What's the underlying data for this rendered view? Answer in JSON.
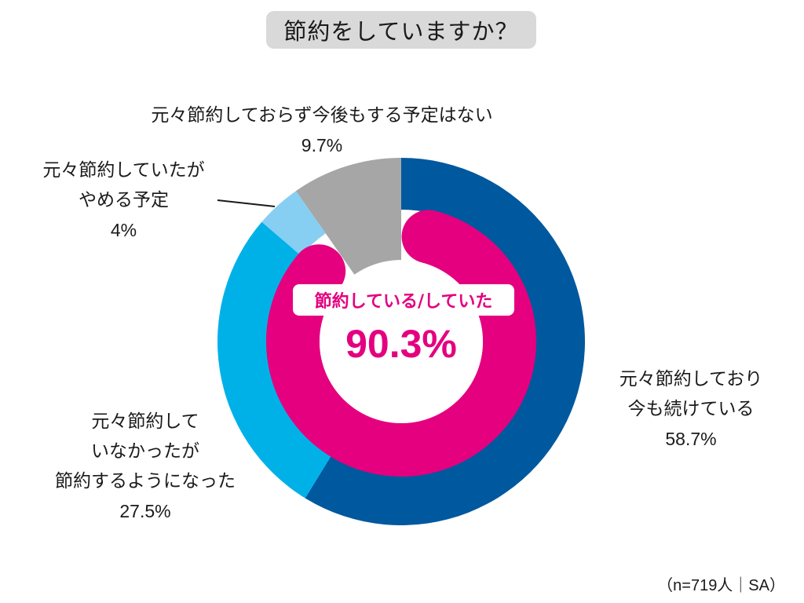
{
  "title": "節約をしていますか？",
  "center": {
    "label": "節約している/していた",
    "value": "90.3%",
    "color": "#e4007f"
  },
  "labels": {
    "continue": {
      "line1": "元々節約しており",
      "line2": "今も続けている",
      "pct": "58.7%"
    },
    "started": {
      "line1": "元々節約して",
      "line2": "いなかったが",
      "line3": "節約するようになった",
      "pct": "27.5%"
    },
    "quit": {
      "line1": "元々節約していたが",
      "line2": "やめる予定",
      "pct": "4%"
    },
    "never": {
      "line1": "元々節約しておらず今後もする予定はない",
      "pct": "9.7%"
    }
  },
  "footnote": "（n=719人｜SA）",
  "chart_data": {
    "type": "pie",
    "subtype": "donut",
    "title": "節約をしていますか？",
    "categories": [
      "元々節約しており今も続けている",
      "元々節約していなかったが節約するようになった",
      "元々節約していたがやめる予定",
      "元々節約しておらず今後もする予定はない"
    ],
    "values": [
      58.7,
      27.5,
      4.0,
      9.7
    ],
    "colors": [
      "#00589e",
      "#00b1e8",
      "#87cef3",
      "#a6a6a6"
    ],
    "unit": "%",
    "start_angle": 0,
    "direction": "clockwise",
    "inner_highlight": {
      "label": "節約している/していた",
      "value": 90.3,
      "color": "#e4007f"
    },
    "sample": "n=719人",
    "answer_type": "SA"
  }
}
